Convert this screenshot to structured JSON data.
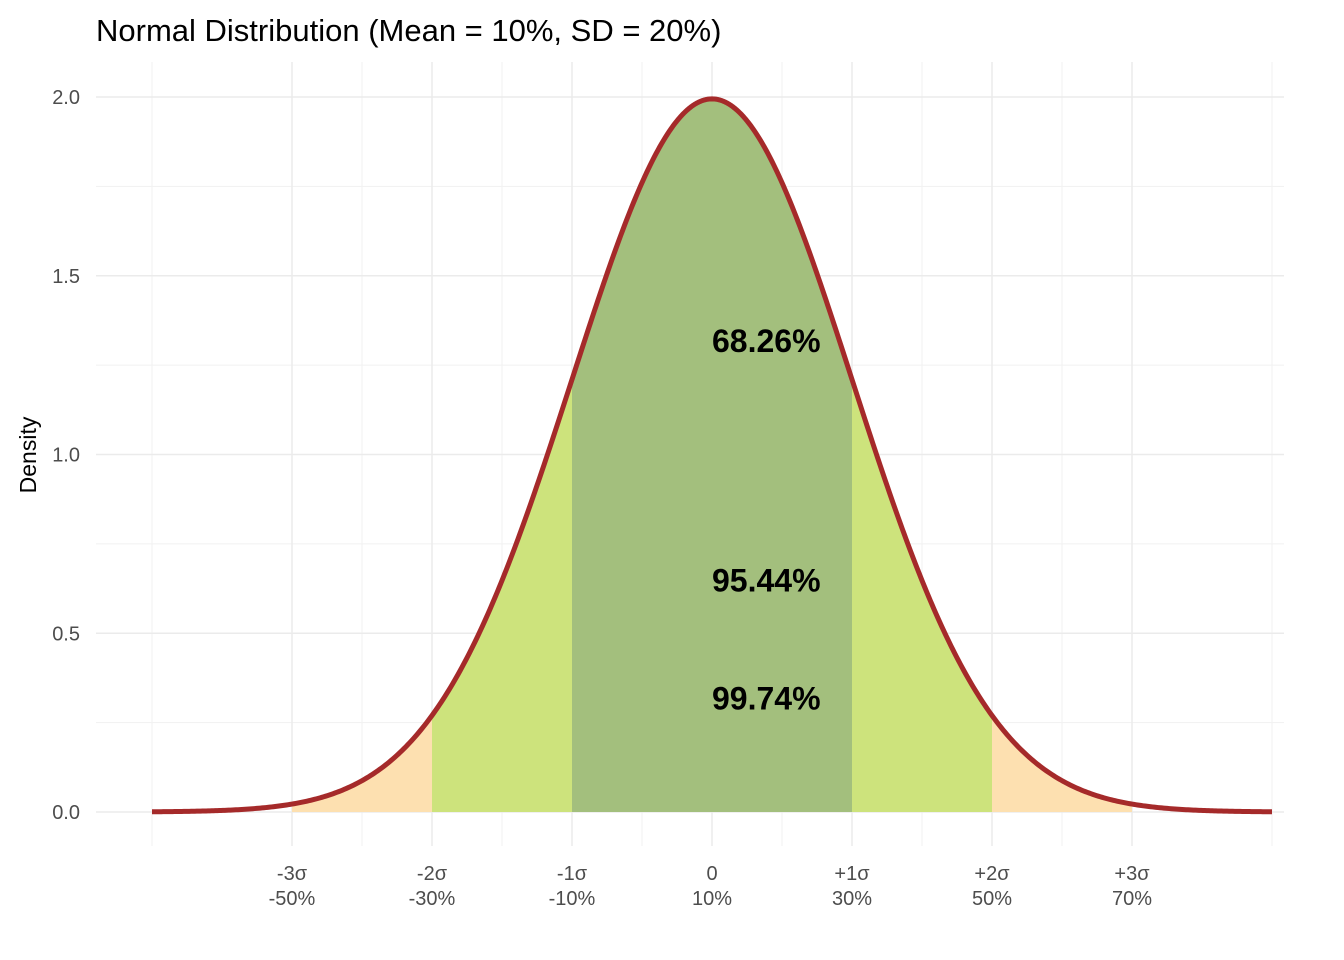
{
  "chart_data": {
    "type": "area",
    "title": "Normal Distribution (Mean = 10%, SD = 20%)",
    "xlabel": "",
    "ylabel": "Density",
    "distribution": {
      "mean": 0.1,
      "sd": 0.2
    },
    "xlim": [
      -0.7,
      0.9
    ],
    "ylim": [
      0,
      2.0
    ],
    "grid": true,
    "legend": "none",
    "y_ticks": [
      {
        "value": 0.0,
        "label": "0.0"
      },
      {
        "value": 0.5,
        "label": "0.5"
      },
      {
        "value": 1.0,
        "label": "1.0"
      },
      {
        "value": 1.5,
        "label": "1.5"
      },
      {
        "value": 2.0,
        "label": "2.0"
      }
    ],
    "x_ticks": [
      {
        "value": -0.5,
        "line1": "-3σ",
        "line2": "-50%"
      },
      {
        "value": -0.3,
        "line1": "-2σ",
        "line2": "-30%"
      },
      {
        "value": -0.1,
        "line1": "-1σ",
        "line2": "-10%"
      },
      {
        "value": 0.1,
        "line1": "0",
        "line2": "10%"
      },
      {
        "value": 0.3,
        "line1": "+1σ",
        "line2": "30%"
      },
      {
        "value": 0.5,
        "line1": "+2σ",
        "line2": "50%"
      },
      {
        "value": 0.7,
        "line1": "+3σ",
        "line2": "70%"
      }
    ],
    "bands": [
      {
        "name": "3 SD",
        "from": -0.5,
        "to": 0.7,
        "color": "#fde0b0"
      },
      {
        "name": "2 SD",
        "from": -0.3,
        "to": 0.5,
        "color": "#cde37c"
      },
      {
        "name": "1 SD",
        "from": -0.1,
        "to": 0.3,
        "color": "#a3bf7d"
      }
    ],
    "curve_color": "#a52a2a",
    "annotations": [
      {
        "label": "68.26%",
        "x": 0.1,
        "y": 1.32
      },
      {
        "label": "95.44%",
        "x": 0.1,
        "y": 0.65
      },
      {
        "label": "99.74%",
        "x": 0.1,
        "y": 0.32
      }
    ]
  }
}
